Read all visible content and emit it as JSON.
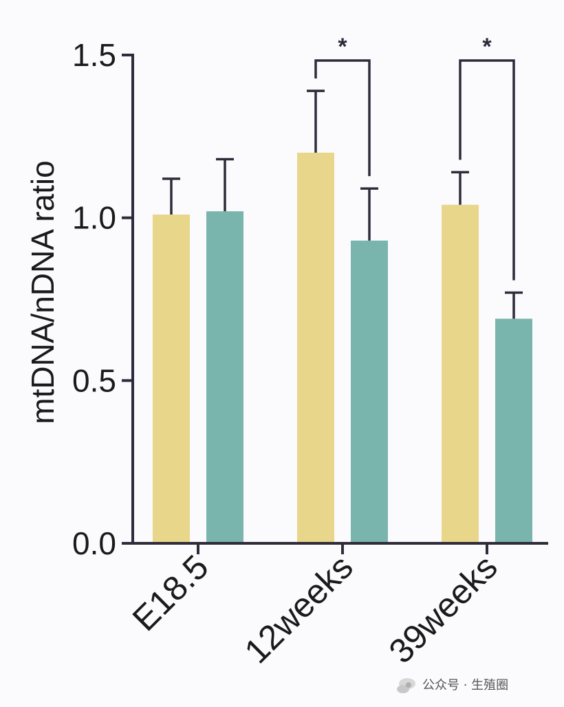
{
  "chart_data": {
    "type": "bar",
    "title": "",
    "xlabel": "",
    "ylabel": "mtDNA/nDNA ratio",
    "ylim": [
      0,
      1.5
    ],
    "yticks": [
      "0.0",
      "0.5",
      "1.0",
      "1.5"
    ],
    "categories": [
      "E18.5",
      "12weeks",
      "39weeks"
    ],
    "series": [
      {
        "color": "#e8d68b",
        "values": [
          1.01,
          1.2,
          1.04
        ],
        "errors": [
          0.11,
          0.19,
          0.1
        ]
      },
      {
        "color": "#7ab5ad",
        "values": [
          1.02,
          0.93,
          0.69
        ],
        "errors": [
          0.16,
          0.16,
          0.08
        ]
      }
    ],
    "significance": [
      {
        "category_index": 1,
        "label": "*"
      },
      {
        "category_index": 2,
        "label": "*"
      }
    ],
    "grid": false,
    "legend": "none"
  },
  "watermark": {
    "text": "公众号 · 生殖圈",
    "icon": "flower-logo-icon"
  }
}
